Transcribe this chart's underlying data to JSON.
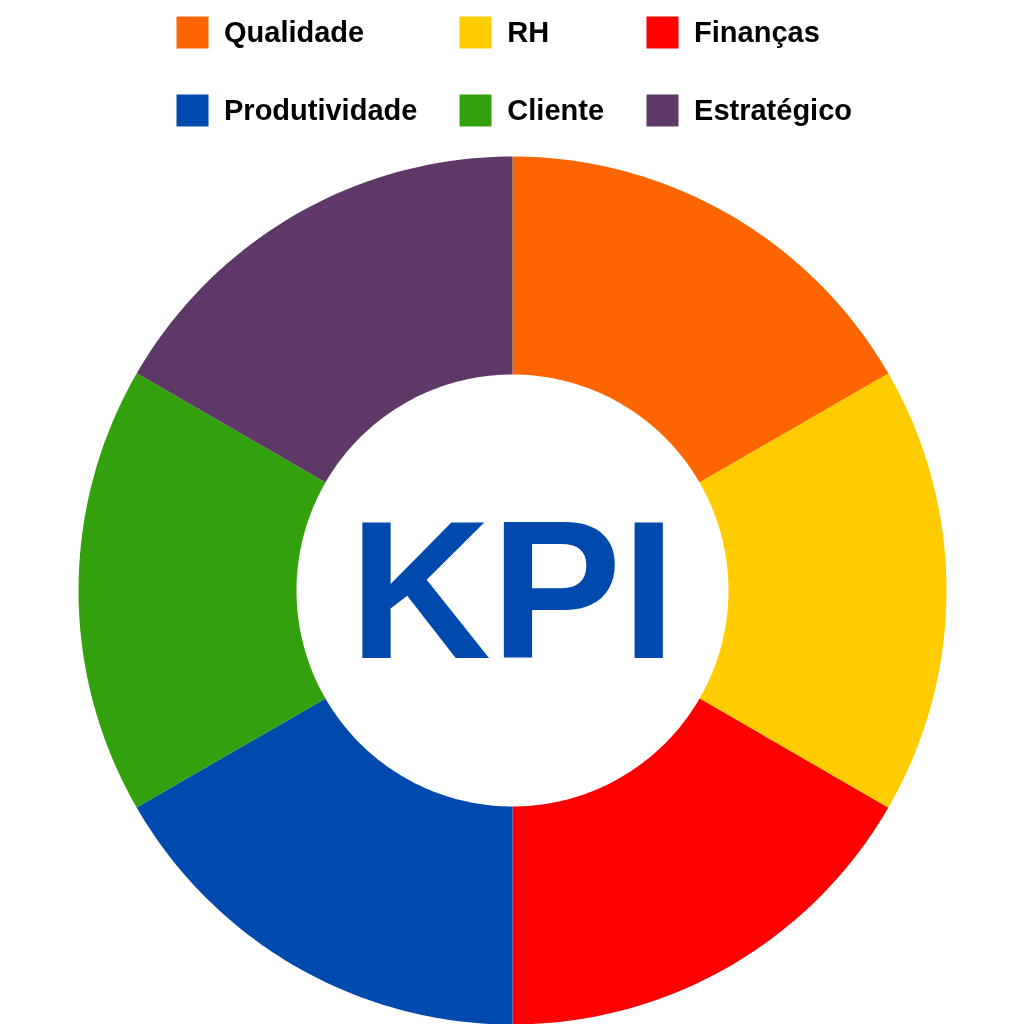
{
  "chart_data": {
    "type": "donut",
    "title": "KPI",
    "categories": [
      "Qualidade",
      "RH",
      "Finanças",
      "Produtividade",
      "Cliente",
      "Estratégico"
    ],
    "values": [
      16.67,
      16.67,
      16.66,
      16.67,
      16.67,
      16.66
    ],
    "colors": [
      "#ff6600",
      "#ffcc00",
      "#ff0000",
      "#004aad",
      "#33a10e",
      "#5e3866"
    ],
    "legend": "top"
  }
}
